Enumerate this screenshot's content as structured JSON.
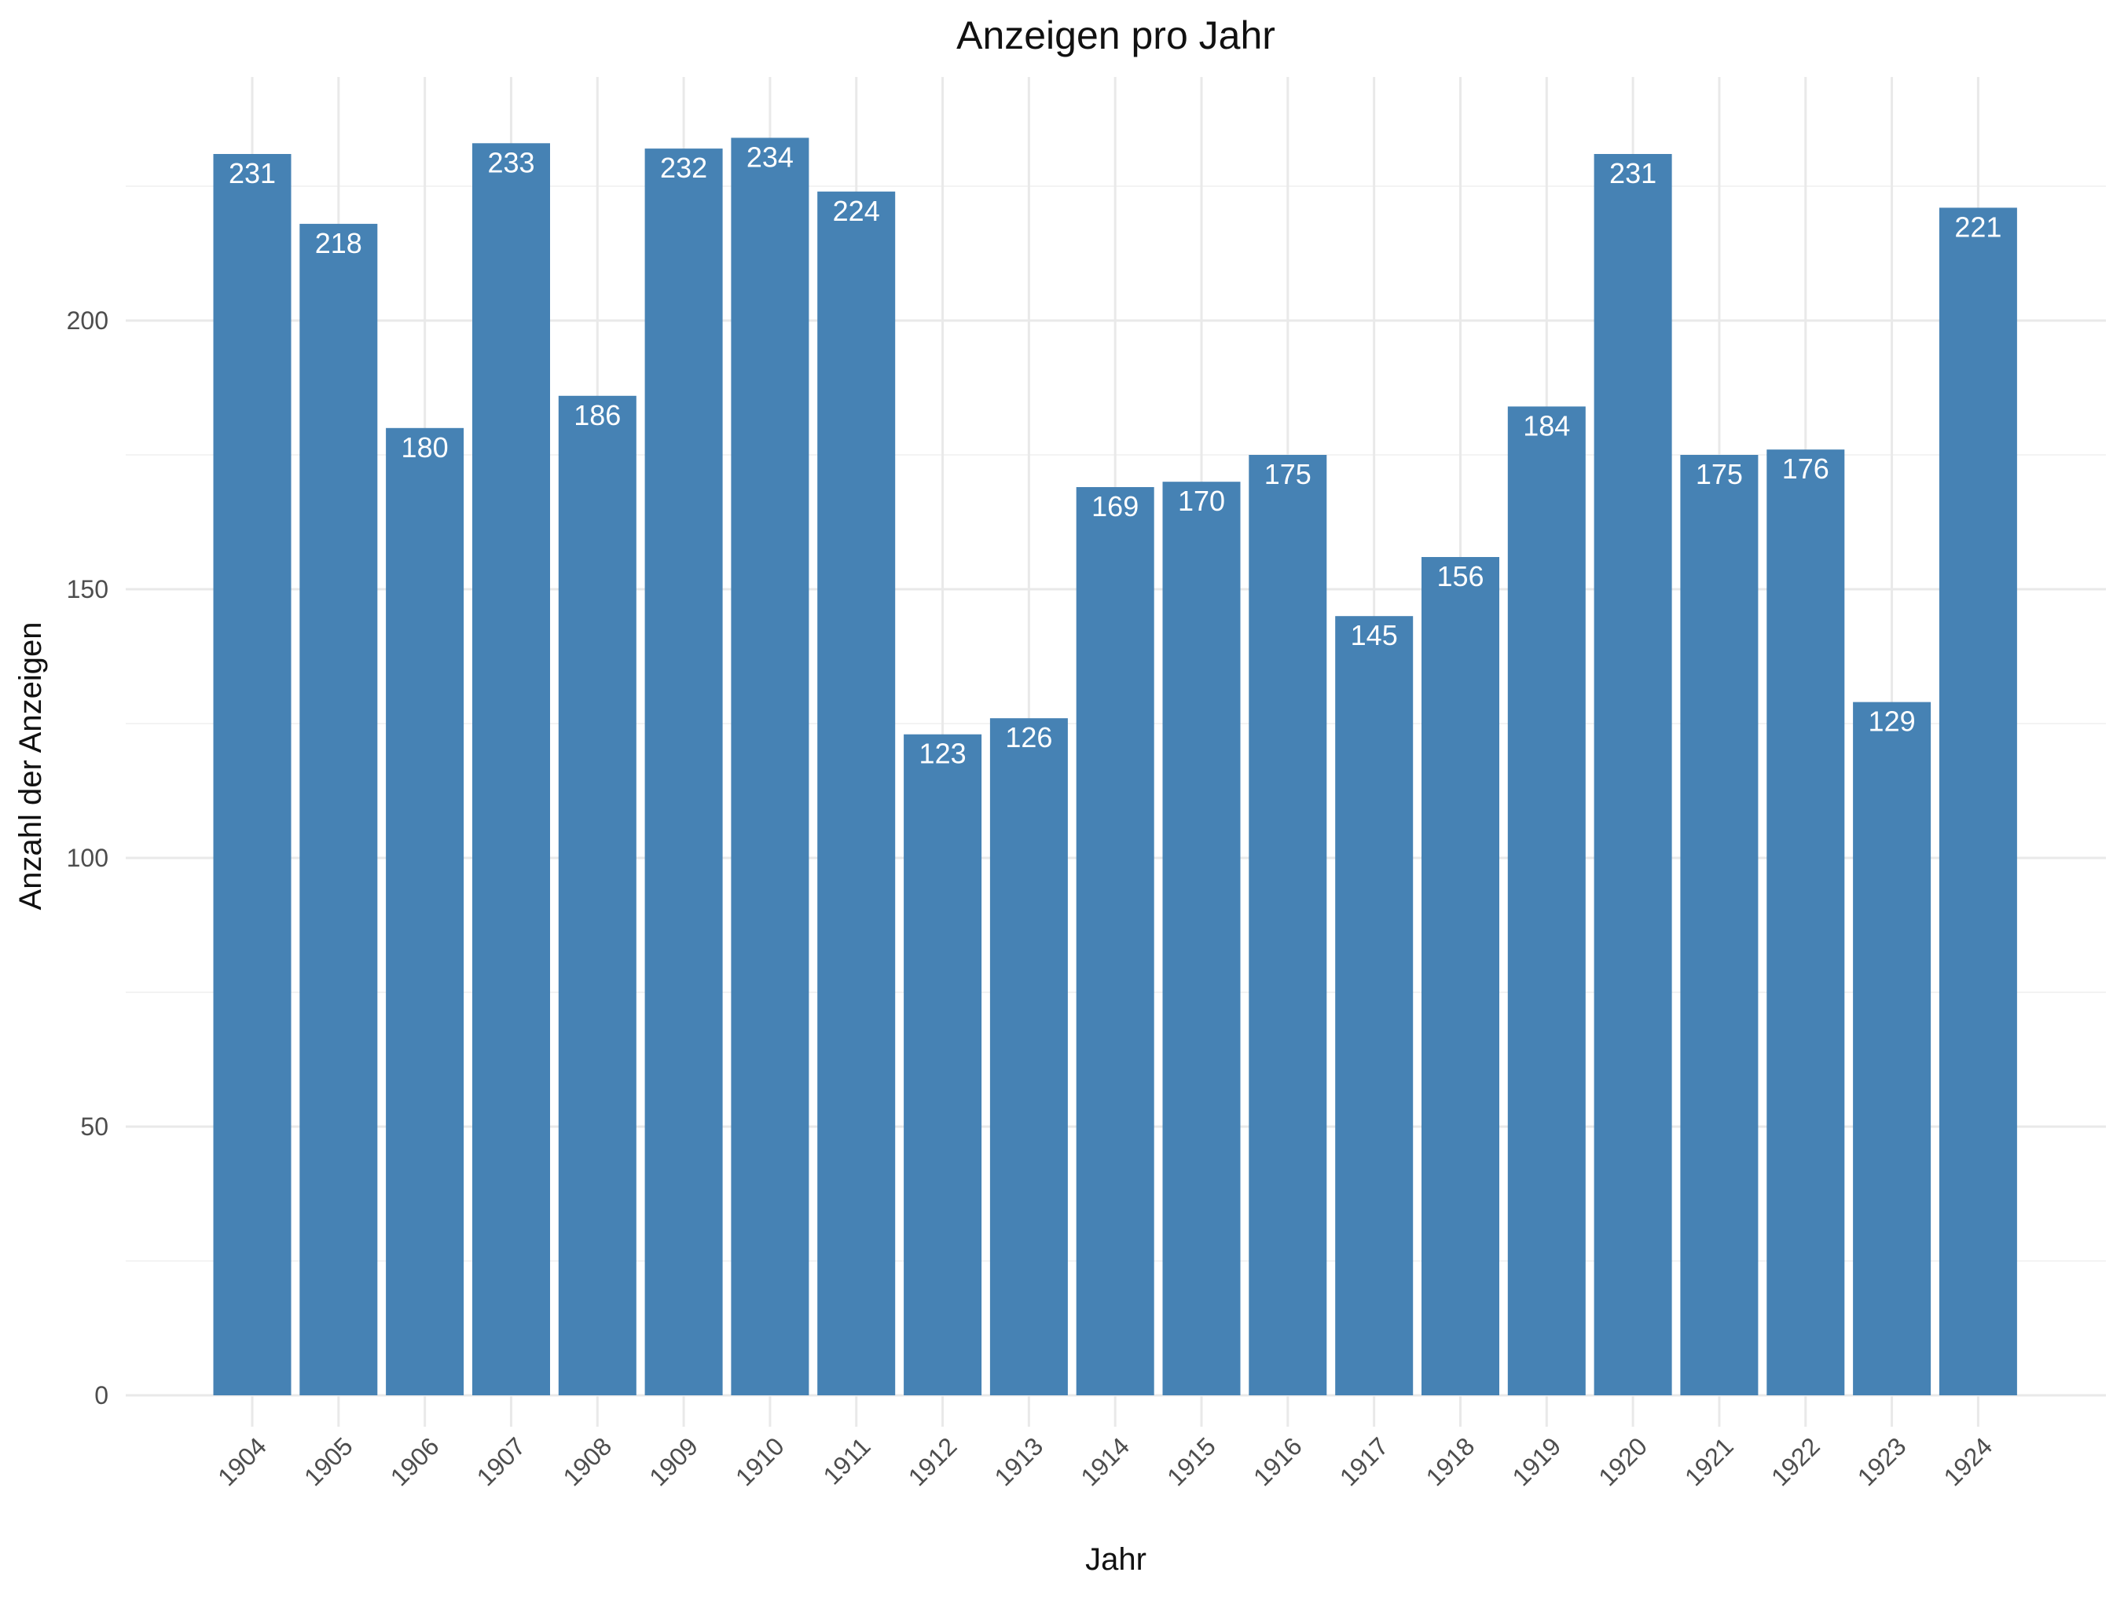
{
  "chart_data": {
    "type": "bar",
    "title": "Anzeigen pro Jahr",
    "xlabel": "Jahr",
    "ylabel": "Anzahl der Anzeigen",
    "categories": [
      "1904",
      "1905",
      "1906",
      "1907",
      "1908",
      "1909",
      "1910",
      "1911",
      "1912",
      "1913",
      "1914",
      "1915",
      "1916",
      "1917",
      "1918",
      "1919",
      "1920",
      "1921",
      "1922",
      "1923",
      "1924"
    ],
    "values": [
      231,
      218,
      180,
      233,
      186,
      232,
      234,
      224,
      123,
      126,
      169,
      170,
      175,
      145,
      156,
      184,
      231,
      175,
      176,
      129,
      221
    ],
    "ylim": [
      0,
      245
    ],
    "y_ticks": [
      0,
      50,
      100,
      150,
      200
    ],
    "bar_color": "#4682B4",
    "label_color": "#ffffff",
    "grid": true,
    "legend": "none"
  }
}
